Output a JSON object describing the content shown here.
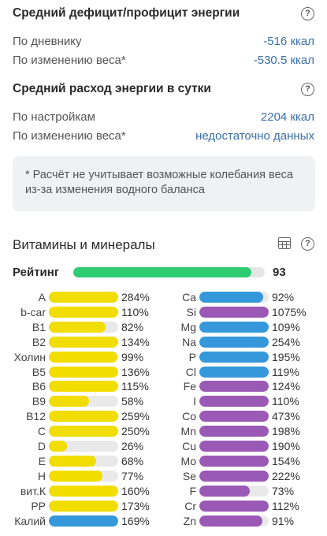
{
  "deficit": {
    "title": "Средний дефицит/профицит энергии",
    "rows": [
      {
        "label": "По дневнику",
        "value": "-516 ккал"
      },
      {
        "label": "По изменению веса*",
        "value": "-530.5 ккал"
      }
    ]
  },
  "expense": {
    "title": "Средний расход энергии в сутки",
    "rows": [
      {
        "label": "По настройкам",
        "value": "2204 ккал"
      },
      {
        "label": "По изменению веса*",
        "value": "недостаточно данных"
      }
    ]
  },
  "note": "* Расчёт не учитывает возможные колебания веса из-за изменения водного баланса",
  "help_glyph": "?",
  "vitamins": {
    "title": "Витамины и минералы",
    "rating_label": "Рейтинг",
    "rating_value": "93",
    "rating_fraction": 0.93,
    "colors": {
      "yellow": "#f2dd00",
      "blue": "#3498db",
      "purple": "#9b59b6",
      "green": "#2ecc71"
    },
    "left": [
      {
        "name": "A",
        "pct": "284%",
        "fill": 1.0,
        "color": "yellow"
      },
      {
        "name": "b-car",
        "pct": "110%",
        "fill": 1.0,
        "color": "yellow"
      },
      {
        "name": "B1",
        "pct": "82%",
        "fill": 0.82,
        "color": "yellow"
      },
      {
        "name": "B2",
        "pct": "134%",
        "fill": 1.0,
        "color": "yellow"
      },
      {
        "name": "Холин",
        "pct": "99%",
        "fill": 0.99,
        "color": "yellow"
      },
      {
        "name": "B5",
        "pct": "136%",
        "fill": 1.0,
        "color": "yellow"
      },
      {
        "name": "B6",
        "pct": "115%",
        "fill": 1.0,
        "color": "yellow"
      },
      {
        "name": "B9",
        "pct": "58%",
        "fill": 0.58,
        "color": "yellow"
      },
      {
        "name": "B12",
        "pct": "259%",
        "fill": 1.0,
        "color": "yellow"
      },
      {
        "name": "C",
        "pct": "250%",
        "fill": 1.0,
        "color": "yellow"
      },
      {
        "name": "D",
        "pct": "26%",
        "fill": 0.26,
        "color": "yellow"
      },
      {
        "name": "E",
        "pct": "68%",
        "fill": 0.68,
        "color": "yellow"
      },
      {
        "name": "H",
        "pct": "77%",
        "fill": 0.77,
        "color": "yellow"
      },
      {
        "name": "вит.К",
        "pct": "160%",
        "fill": 1.0,
        "color": "yellow"
      },
      {
        "name": "PP",
        "pct": "173%",
        "fill": 1.0,
        "color": "yellow"
      },
      {
        "name": "Калий",
        "pct": "169%",
        "fill": 1.0,
        "color": "blue"
      }
    ],
    "right": [
      {
        "name": "Ca",
        "pct": "92%",
        "fill": 0.92,
        "color": "blue"
      },
      {
        "name": "Si",
        "pct": "1075%",
        "fill": 1.0,
        "color": "purple"
      },
      {
        "name": "Mg",
        "pct": "109%",
        "fill": 1.0,
        "color": "blue"
      },
      {
        "name": "Na",
        "pct": "254%",
        "fill": 1.0,
        "color": "blue"
      },
      {
        "name": "P",
        "pct": "195%",
        "fill": 1.0,
        "color": "blue"
      },
      {
        "name": "Cl",
        "pct": "119%",
        "fill": 1.0,
        "color": "blue"
      },
      {
        "name": "Fe",
        "pct": "124%",
        "fill": 1.0,
        "color": "purple"
      },
      {
        "name": "I",
        "pct": "110%",
        "fill": 1.0,
        "color": "purple"
      },
      {
        "name": "Co",
        "pct": "473%",
        "fill": 1.0,
        "color": "purple"
      },
      {
        "name": "Mn",
        "pct": "198%",
        "fill": 1.0,
        "color": "purple"
      },
      {
        "name": "Cu",
        "pct": "190%",
        "fill": 1.0,
        "color": "purple"
      },
      {
        "name": "Mo",
        "pct": "154%",
        "fill": 1.0,
        "color": "purple"
      },
      {
        "name": "Se",
        "pct": "222%",
        "fill": 1.0,
        "color": "purple"
      },
      {
        "name": "F",
        "pct": "73%",
        "fill": 0.73,
        "color": "purple"
      },
      {
        "name": "Cr",
        "pct": "112%",
        "fill": 1.0,
        "color": "purple"
      },
      {
        "name": "Zn",
        "pct": "91%",
        "fill": 0.91,
        "color": "purple"
      }
    ]
  },
  "icons": {
    "help": "help-circle-icon",
    "table": "table-grid-icon"
  }
}
